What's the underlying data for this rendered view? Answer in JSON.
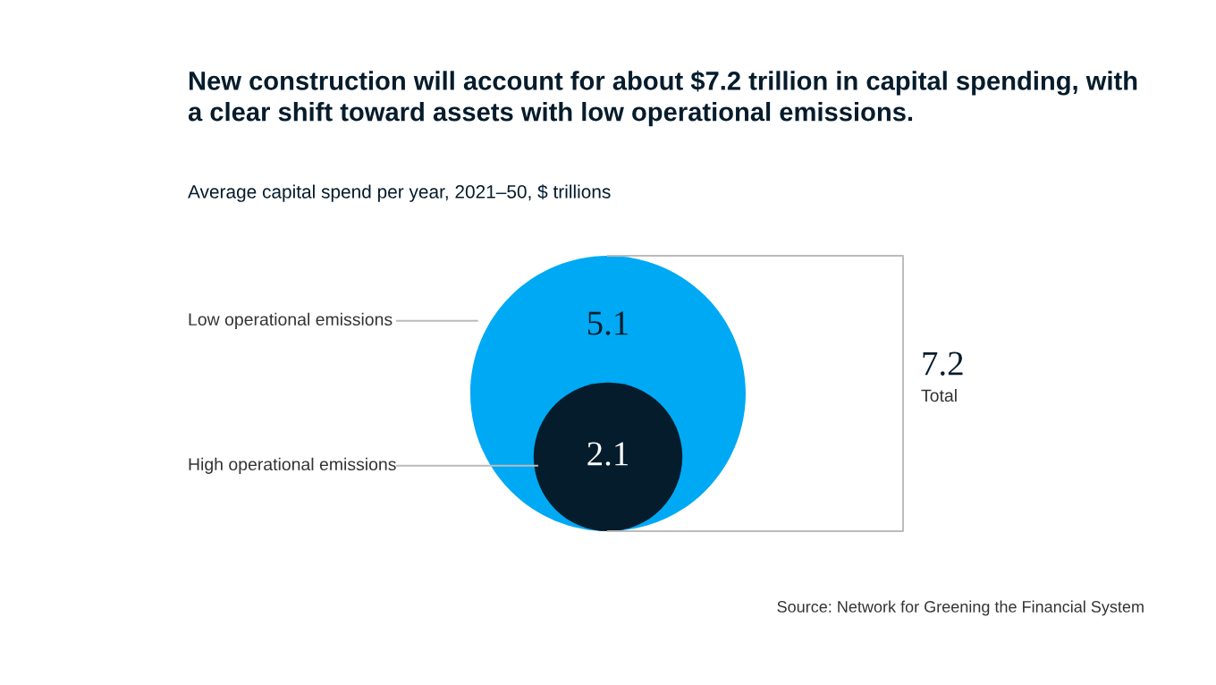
{
  "chart_data": {
    "type": "other",
    "title": "New construction will account for about $7.2 trillion in capital spending, with\na clear shift toward assets with low operational emissions.",
    "subtitle": "Average capital spend per year, 2021–50, $ trillions",
    "categories": [
      "Low operational emissions",
      "High operational emissions"
    ],
    "values": [
      5.1,
      2.1
    ],
    "colors": [
      "#00a9f4",
      "#051c2c"
    ],
    "data_labels": true,
    "annotations": [
      "7.2",
      "Total",
      "Source: Network for Greening the Financial System"
    ]
  }
}
